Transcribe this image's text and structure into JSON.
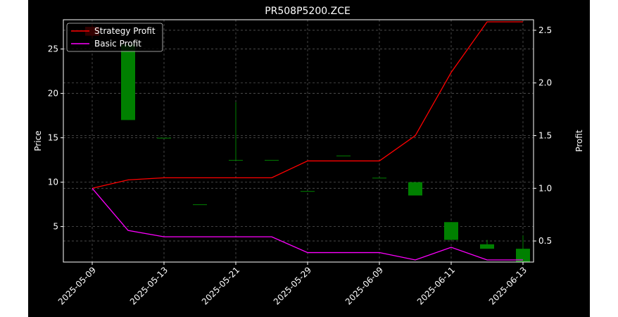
{
  "chart_data": {
    "type": "candlestick+line",
    "title": "PR508P5200.ZCE",
    "ylabel_left": "Price",
    "ylabel_right": "Profit",
    "xlabel": "",
    "ylim_left": [
      1.0,
      28.3
    ],
    "ylim_right": [
      0.3,
      2.6
    ],
    "left_ticks": [
      "5",
      "10",
      "15",
      "20",
      "25"
    ],
    "right_ticks": [
      "0.5",
      "1.0",
      "1.5",
      "2.0",
      "2.5"
    ],
    "x_tick_labels": [
      "2025-05-09",
      "2025-05-13",
      "2025-05-21",
      "2025-05-29",
      "2025-06-09",
      "2025-06-11",
      "2025-06-13"
    ],
    "grid": true,
    "legend_position": "top-left",
    "background": "#000000",
    "up_color": "#008000",
    "down_color": "#ff0000",
    "candles": [
      {
        "open": 27.5,
        "close": 26.5,
        "high": 27.8,
        "low": 26.2
      },
      {
        "open": 17.0,
        "close": 25.5,
        "high": 25.5,
        "low": 17.0
      },
      {
        "open": 15.0,
        "close": 15.0,
        "high": 15.0,
        "low": 15.0
      },
      {
        "open": 7.5,
        "close": 7.5,
        "high": 7.5,
        "low": 7.5
      },
      {
        "open": 12.5,
        "close": 12.5,
        "high": 19.0,
        "low": 12.5
      },
      {
        "open": 12.5,
        "close": 12.5,
        "high": 12.5,
        "low": 12.5
      },
      {
        "open": 9.0,
        "close": 9.0,
        "high": 9.0,
        "low": 9.0
      },
      {
        "open": 13.0,
        "close": 13.0,
        "high": 13.0,
        "low": 13.0
      },
      {
        "open": 10.5,
        "close": 10.5,
        "high": 10.5,
        "low": 10.5
      },
      {
        "open": 8.5,
        "close": 10.0,
        "high": 10.0,
        "low": 8.5
      },
      {
        "open": 3.5,
        "close": 5.5,
        "high": 5.5,
        "low": 3.5
      },
      {
        "open": 2.5,
        "close": 3.0,
        "high": 3.5,
        "low": 2.5
      },
      {
        "open": 1.0,
        "close": 2.5,
        "high": 4.0,
        "low": 1.0
      }
    ],
    "series": [
      {
        "name": "Strategy Profit",
        "color": "#ff0000",
        "values": [
          1.0,
          1.08,
          1.1,
          1.1,
          1.1,
          1.1,
          1.26,
          1.26,
          1.26,
          1.5,
          2.1,
          2.58,
          2.58
        ]
      },
      {
        "name": "Basic Profit",
        "color": "#ff00ff",
        "values": [
          1.0,
          0.6,
          0.54,
          0.54,
          0.54,
          0.54,
          0.39,
          0.39,
          0.39,
          0.32,
          0.44,
          0.32,
          0.32
        ]
      }
    ]
  }
}
